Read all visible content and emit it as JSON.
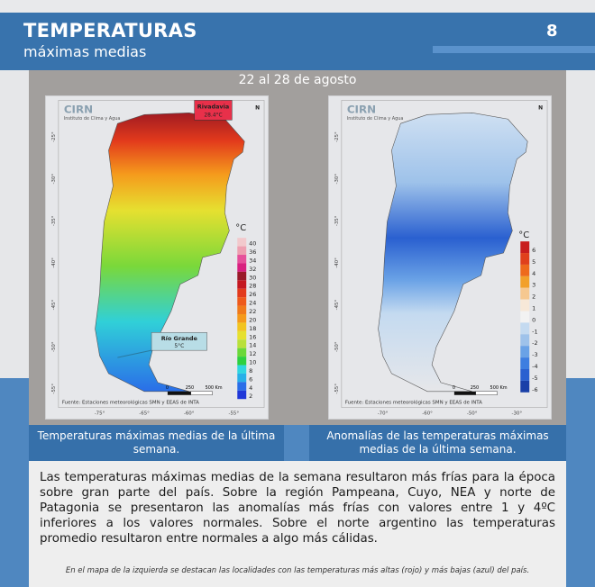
{
  "header": {
    "title": "TEMPERATURAS",
    "subtitle": "máximas medias",
    "page_number": "8"
  },
  "panel": {
    "date_range": "22 al 28 de agosto"
  },
  "map_left": {
    "logo": "CIRN",
    "institute": "Instituto de Clima y Agua",
    "max_station": {
      "name": "Rivadavia",
      "value": "28.4°C",
      "color": "#e8304a"
    },
    "min_station": {
      "name": "Río Grande",
      "value": "5°C",
      "color": "#b8dde6"
    },
    "unit": "°C",
    "legend": [
      "40",
      "36",
      "34",
      "32",
      "30",
      "28",
      "26",
      "24",
      "22",
      "20",
      "18",
      "16",
      "14",
      "12",
      "10",
      "8",
      "6",
      "4",
      "2"
    ],
    "legend_colors": [
      "#f2c9cc",
      "#ee9fb0",
      "#e6509a",
      "#d8207f",
      "#9a1a2a",
      "#c41820",
      "#e23a1c",
      "#ee5a1c",
      "#f07a1c",
      "#f59a1c",
      "#f2c420",
      "#e6e030",
      "#b8e03a",
      "#6ad83a",
      "#2ed040",
      "#30d6e0",
      "#28b0e8",
      "#2a6ee8",
      "#2038d8"
    ],
    "lat_labels": [
      "-25°",
      "-30°",
      "-35°",
      "-40°",
      "-45°",
      "-50°",
      "-55°"
    ],
    "lon_labels": [
      "-75°",
      "-65°",
      "-60°",
      "-55°"
    ],
    "scale": [
      "0",
      "250",
      "500 Km"
    ],
    "source": "Fuente: Estaciones meteorológicas SMN y EEAS de INTA",
    "north": "N"
  },
  "map_right": {
    "logo": "CIRN",
    "institute": "Instituto de Clima y Agua",
    "unit": "°C",
    "legend": [
      "6",
      "5",
      "4",
      "3",
      "2",
      "1",
      "0",
      "-1",
      "-2",
      "-3",
      "-4",
      "-5",
      "-6"
    ],
    "legend_colors": [
      "#c81e1e",
      "#e0401c",
      "#ee6a1c",
      "#f2a02a",
      "#f6c890",
      "#f7e8d8",
      "#f2f2f2",
      "#c4daf0",
      "#9ec2ea",
      "#6aa2e6",
      "#3e7ee0",
      "#2a60d0",
      "#1a40a8"
    ],
    "lat_labels": [
      "-25°",
      "-30°",
      "-35°",
      "-40°",
      "-45°",
      "-50°",
      "-55°"
    ],
    "lon_labels": [
      "-70°",
      "-60°",
      "-50°",
      "-30°"
    ],
    "scale": [
      "0",
      "250",
      "500 Km"
    ],
    "source": "Fuente: Estaciones meteorológicas SMN y EEAS de INTA",
    "north": "N"
  },
  "captions": {
    "left": "Temperaturas máximas medias de la última semana.",
    "right": "Anomalías de las temperaturas máximas medias de la última semana."
  },
  "body": {
    "paragraph": "Las temperaturas máximas medias de la semana resultaron más frías para la época sobre gran parte del país. Sobre la región Pampeana, Cuyo, NEA y norte de Patagonia se presentaron las anomalías más frías con valores entre 1 y 4ºC inferiores a los valores normales. Sobre el norte argentino las temperaturas promedio resultaron entre normales a algo más cálidas.",
    "note": "En el mapa de la izquierda se destacan las localidades con las temperaturas más altas (rojo) y más bajas (azul) del país."
  }
}
